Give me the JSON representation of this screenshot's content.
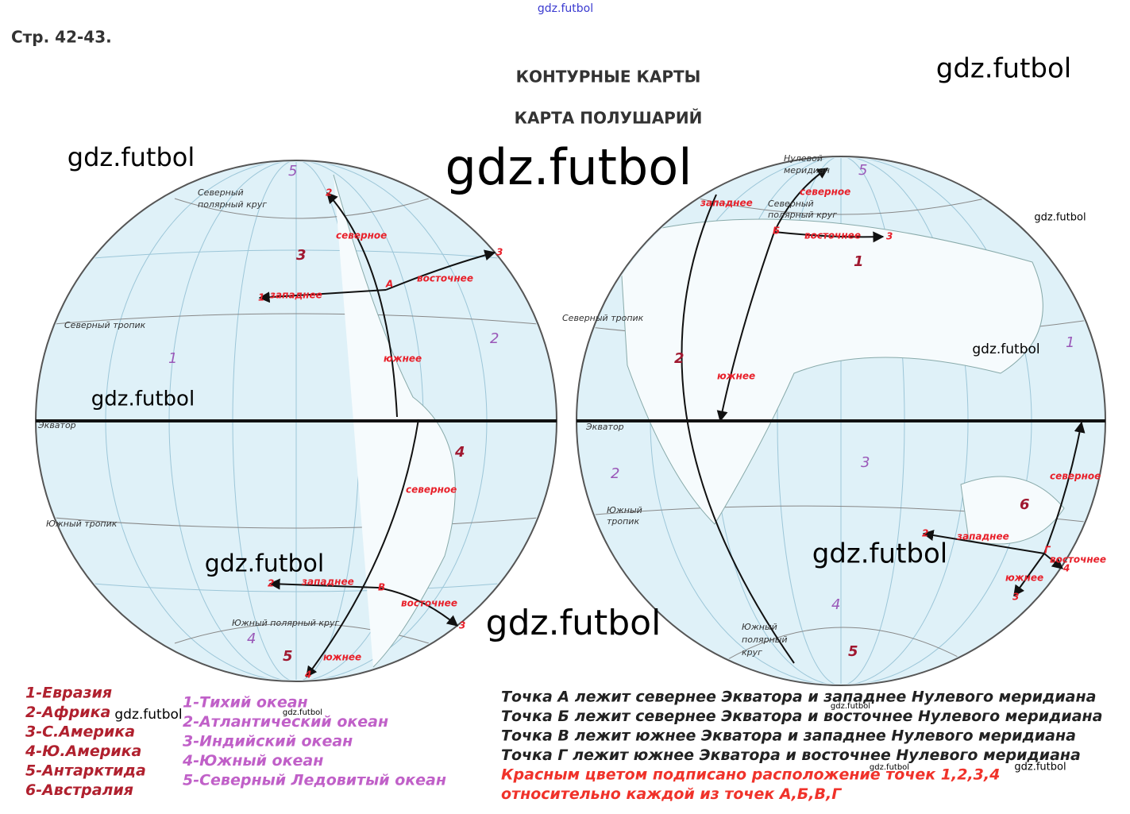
{
  "header": {
    "page_ref": "Стр. 42-43.",
    "site": "gdz.futbol",
    "title": "КОНТУРНЫЕ КАРТЫ",
    "subtitle": "КАРТА ПОЛУШАРИЙ"
  },
  "watermarks": [
    "gdz.futbol",
    "gdz.futbol",
    "gdz.futbol",
    "gdz.futbol",
    "gdz.futbol",
    "gdz.futbol",
    "gdz.futbol",
    "gdz.futbol",
    "gdz.futbol",
    "gdz.futbol",
    "gdz.futbol",
    "gdz.futbol",
    "gdz.futbol",
    "gdz.futbol"
  ],
  "left_map": {
    "labels": [
      "5",
      "Северный",
      "полярный круг",
      "2",
      "северное",
      "3",
      "3",
      "восточнее",
      "А",
      "1",
      "западнее",
      "Северный тропик",
      "1",
      "2",
      "южнее",
      "Экватор",
      "4",
      "северное",
      "Южный тропик",
      "2",
      "западнее",
      "В",
      "восточнее",
      "3",
      "Южный полярный круг",
      "4",
      "5",
      "южнее",
      "4"
    ]
  },
  "right_map": {
    "labels": [
      "Нулевой",
      "меридиан",
      "5",
      "северное",
      "западнее",
      "Северный",
      "полярный круг",
      "Б",
      "восточнее",
      "3",
      "1",
      "Северный тропик",
      "2",
      "1",
      "южнее",
      "Экватор",
      "3",
      "2",
      "северное",
      "6",
      "Южный",
      "тропик",
      "2",
      "западнее",
      "Г",
      "восточнее",
      "южнее",
      "4",
      "3",
      "4",
      "Южный",
      "полярный",
      "круг",
      "5"
    ]
  },
  "legend": {
    "continents": [
      "1-Евразия",
      "2-Африка",
      "3-С.Америка",
      "4-Ю.Америка",
      "5-Антарктида",
      "6-Австралия"
    ],
    "oceans": [
      "1-Тихий океан",
      "2-Атлантический океан",
      "3-Индийский океан",
      "4-Южный океан",
      "5-Северный Ледовитый океан"
    ]
  },
  "notes": {
    "statements": [
      "Точка А лежит севернее Экватора и западнее Нулевого меридиана",
      "Точка Б лежит севернее Экватора и восточнее Нулевого меридиана",
      "Точка В лежит южнее Экватора и западнее Нулевого меридиана",
      "Точка Г лежит южнее Экватора и восточнее Нулевого меридиана"
    ],
    "red": [
      "Красным цветом подписано расположение точек 1,2,3,4",
      "относительно каждой из точек А,Б,В,Г"
    ]
  }
}
